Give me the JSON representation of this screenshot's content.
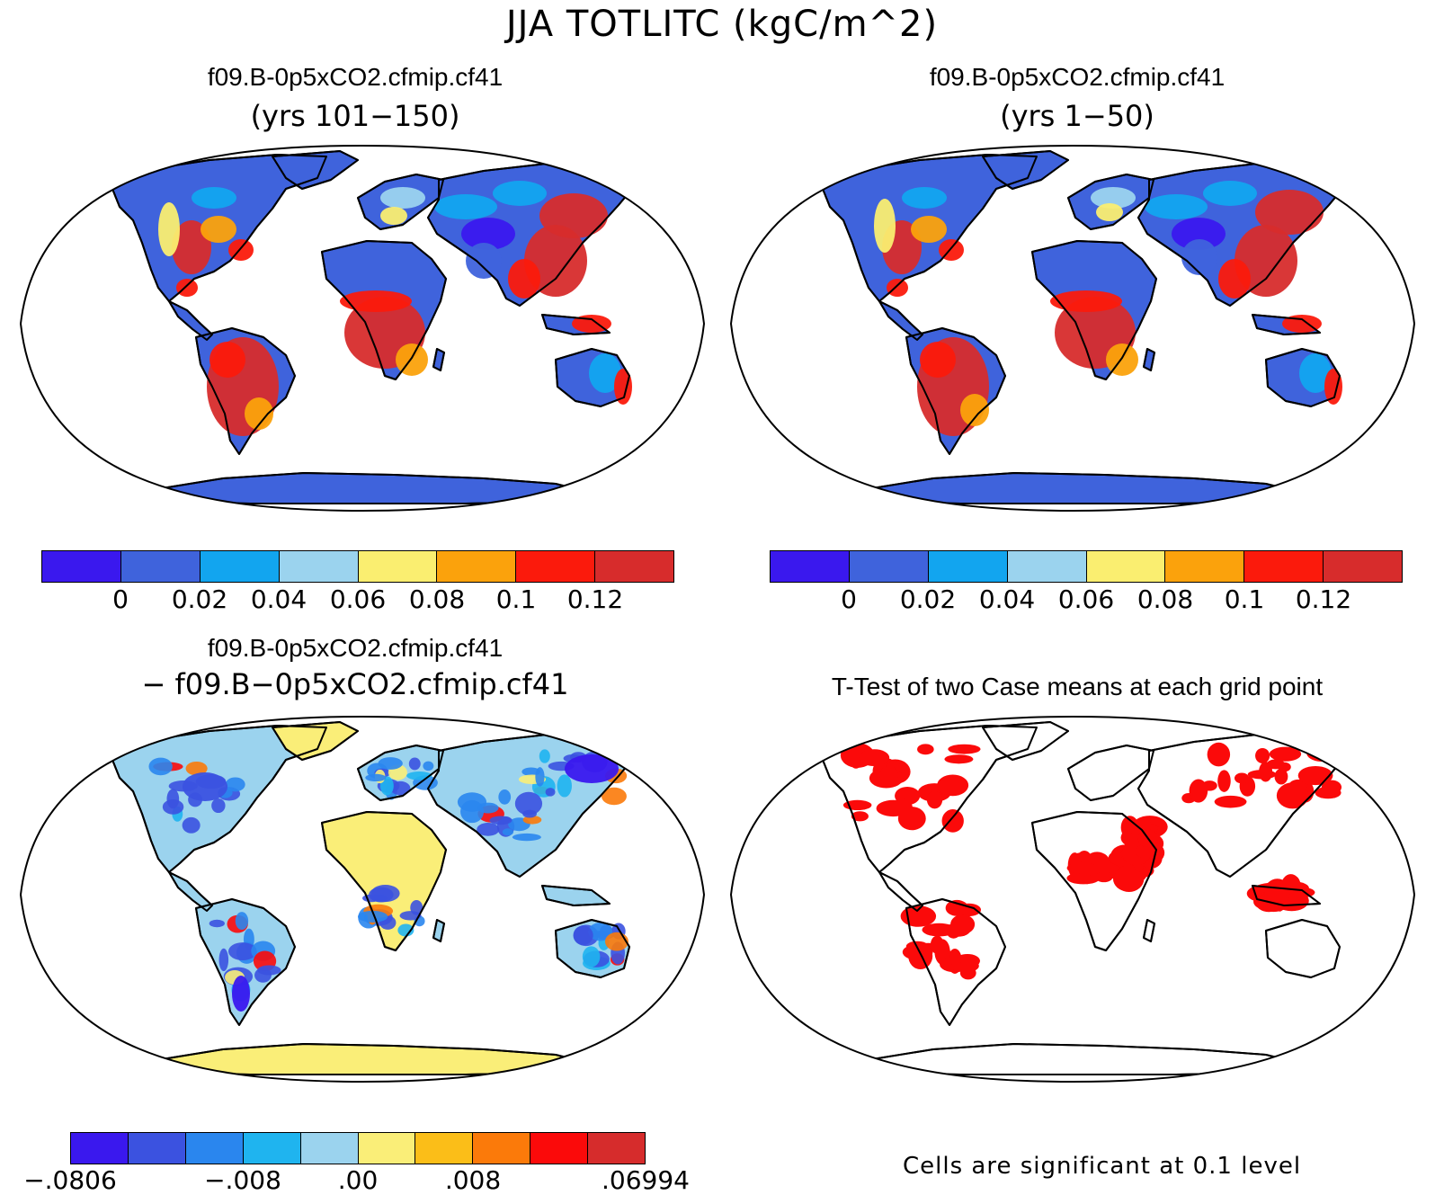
{
  "title": "JJA TOTLITC (kgC/m^2)",
  "panels": [
    {
      "title": "f09.B-0p5xCO2.cfmip.cf41",
      "subtitle": "(yrs 101−150)"
    },
    {
      "title": "f09.B-0p5xCO2.cfmip.cf41",
      "subtitle": "(yrs 1−50)"
    },
    {
      "title": "f09.B-0p5xCO2.cfmip.cf41",
      "subtitle": "− f09.B−0p5xCO2.cfmip.cf41"
    },
    {
      "title": "T-Test of two Case means at each grid point",
      "subtitle": ""
    }
  ],
  "colorbars": {
    "absolute": {
      "colors": [
        "#3a18ee",
        "#3f63dc",
        "#12a5ef",
        "#9bd3ee",
        "#faee70",
        "#fba20c",
        "#fb1a0c",
        "#d72c2c"
      ],
      "labels": [
        "0",
        "0.02",
        "0.04",
        "0.06",
        "0.08",
        "0.1",
        "0.12"
      ]
    },
    "difference": {
      "colors": [
        "#3a18ee",
        "#3b52e0",
        "#2a86ee",
        "#1fb4ef",
        "#9bd3ee",
        "#faee78",
        "#fbbe18",
        "#fb7a0a",
        "#fb0a0a",
        "#d62c2c"
      ],
      "labels": [
        "−.0806",
        "−.008",
        ".00",
        ".008",
        ".06994"
      ]
    }
  },
  "significance_note": "Cells are significant at 0.1 level",
  "colors": {
    "land_low": "#3f63dc",
    "land_high": "#d72c2c",
    "significant": "#fb0a0a",
    "coastline": "#000000"
  }
}
